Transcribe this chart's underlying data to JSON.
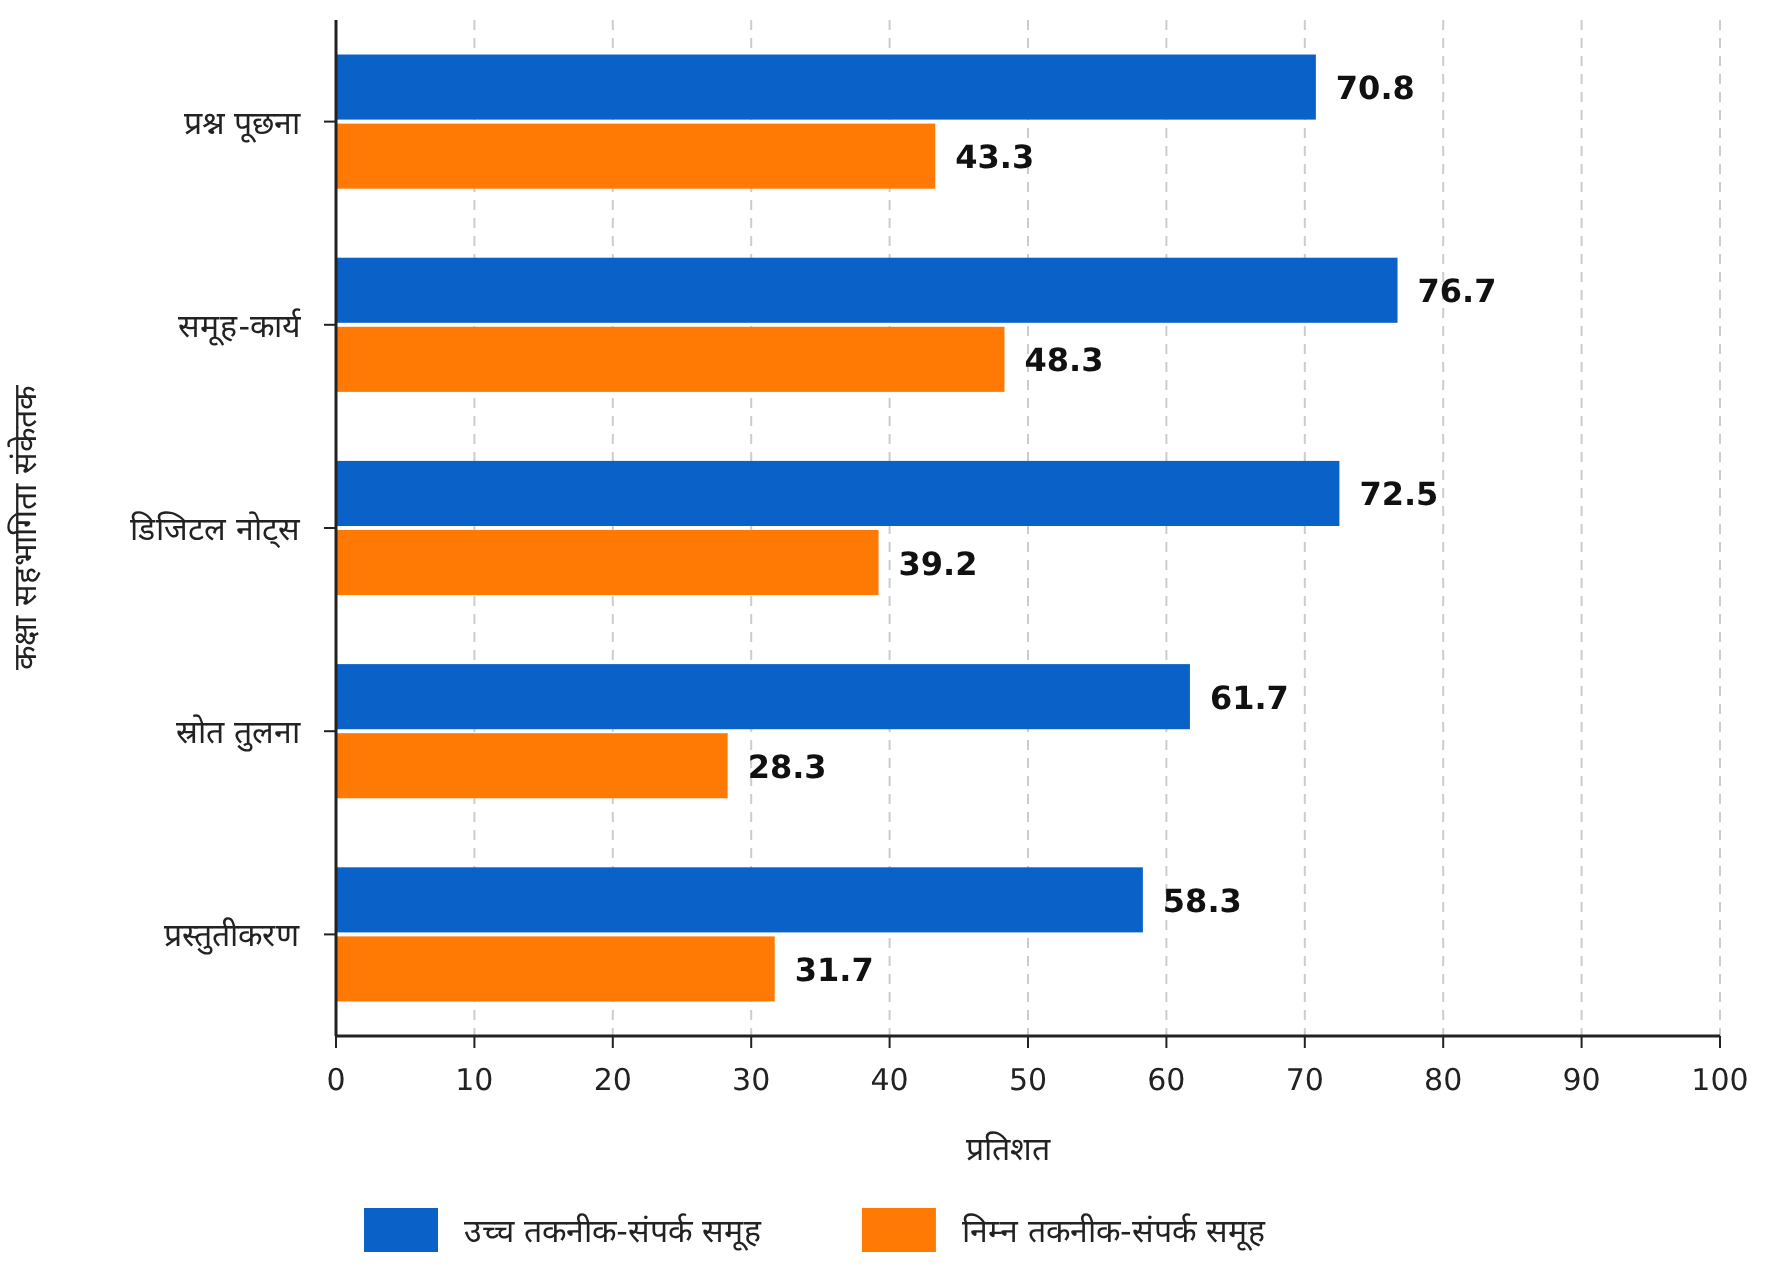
{
  "chart_data": {
    "type": "bar",
    "orientation": "horizontal",
    "xlabel": "प्रतिशत",
    "ylabel": "कक्षा सहभागिता संकेतक",
    "categories": [
      "प्रश्न पूछना",
      "समूह-कार्य",
      "डिजिटल नोट्स",
      "स्रोत तुलना",
      "प्रस्तुतीकरण"
    ],
    "series": [
      {
        "name": "उच्च तकनीक-संपर्क समूह",
        "color": "#0a62c9",
        "values": [
          70.8,
          76.7,
          72.5,
          61.7,
          58.3
        ]
      },
      {
        "name": "निम्न तकनीक-संपर्क समूह",
        "color": "#ff7a05",
        "values": [
          43.3,
          48.3,
          39.2,
          28.3,
          31.7
        ]
      }
    ],
    "xlim": [
      0,
      100
    ],
    "xticks": [
      0,
      10,
      20,
      30,
      40,
      50,
      60,
      70,
      80,
      90,
      100
    ],
    "grid": "x",
    "legend": "bottom",
    "data_labels": true
  }
}
